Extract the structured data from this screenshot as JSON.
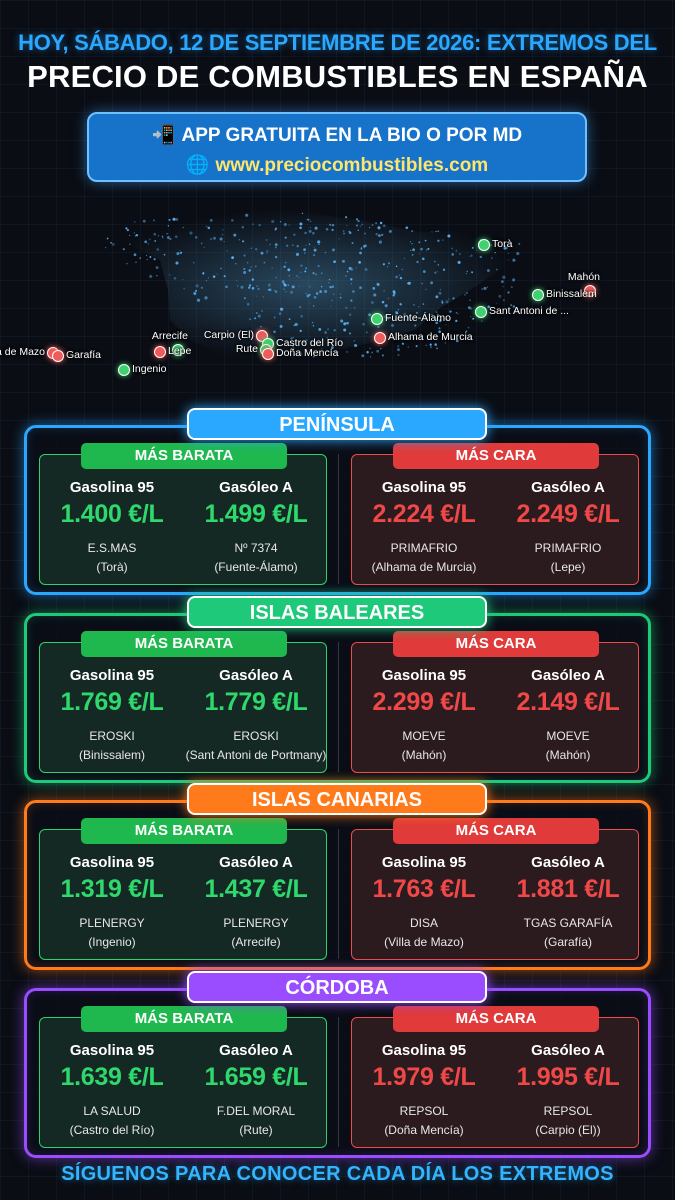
{
  "header": {
    "line1": "HOY, SÁBADO, 12 DE SEPTIEMBRE DE 2026: EXTREMOS DEL",
    "line2": "PRECIO DE COMBUSTIBLES EN ESPAÑA"
  },
  "app_banner": {
    "phone_icon": "📲",
    "line1": "APP GRATUITA EN LA BIO O POR MD",
    "globe_icon": "🌐",
    "line2": "www.preciocombustibles.com"
  },
  "map": {
    "cheap_color": "#3fd16e",
    "expensive_color": "#f05a5a",
    "pins": [
      {
        "label": "Torà",
        "type": "cheap"
      },
      {
        "label": "Mahón",
        "type": "expensive"
      },
      {
        "label": "Binissalem",
        "type": "cheap"
      },
      {
        "label": "Sant Antoni de ...",
        "type": "cheap"
      },
      {
        "label": "Fuente-Álamo",
        "type": "cheap"
      },
      {
        "label": "Alhama de Murcia",
        "type": "expensive"
      },
      {
        "label": "Carpio (El)",
        "type": "expensive"
      },
      {
        "label": "Castro del Río",
        "type": "cheap"
      },
      {
        "label": "Rute",
        "type": "cheap"
      },
      {
        "label": "Doña Mencía",
        "type": "expensive"
      },
      {
        "label": "Arrecife",
        "type": "cheap"
      },
      {
        "label": "Lepe",
        "type": "expensive"
      },
      {
        "label": "Ingenio",
        "type": "cheap"
      },
      {
        "label": "a de Mazo",
        "type": "expensive"
      },
      {
        "label": "Garafía",
        "type": "expensive"
      }
    ]
  },
  "labels": {
    "cheap": "MÁS BARATA",
    "expensive": "MÁS CARA",
    "gasolina": "Gasolina 95",
    "gasoleo": "Gasóleo A"
  },
  "regions": [
    {
      "name": "PENÍNSULA",
      "color": "#2aa7ff",
      "cheap": {
        "gasolina": {
          "price": "1.400 €/L",
          "brand": "E.S.MAS",
          "place": "(Torà)"
        },
        "gasoleo": {
          "price": "1.499 €/L",
          "brand": "Nº 7374",
          "place": "(Fuente-Álamo)"
        }
      },
      "expensive": {
        "gasolina": {
          "price": "2.224 €/L",
          "brand": "PRIMAFRIO",
          "place": "(Alhama de Murcia)"
        },
        "gasoleo": {
          "price": "2.249 €/L",
          "brand": "PRIMAFRIO",
          "place": "(Lepe)"
        }
      }
    },
    {
      "name": "ISLAS BALEARES",
      "color": "#1ec97a",
      "cheap": {
        "gasolina": {
          "price": "1.769 €/L",
          "brand": "EROSKI",
          "place": "(Binissalem)"
        },
        "gasoleo": {
          "price": "1.779 €/L",
          "brand": "EROSKI",
          "place": "(Sant Antoni de Portmany)"
        }
      },
      "expensive": {
        "gasolina": {
          "price": "2.299 €/L",
          "brand": "MOEVE",
          "place": "(Mahón)"
        },
        "gasoleo": {
          "price": "2.149 €/L",
          "brand": "MOEVE",
          "place": "(Mahón)"
        }
      }
    },
    {
      "name": "ISLAS CANARIAS",
      "color": "#ff7a1a",
      "cheap": {
        "gasolina": {
          "price": "1.319 €/L",
          "brand": "PLENERGY",
          "place": "(Ingenio)"
        },
        "gasoleo": {
          "price": "1.437 €/L",
          "brand": "PLENERGY",
          "place": "(Arrecife)"
        }
      },
      "expensive": {
        "gasolina": {
          "price": "1.763 €/L",
          "brand": "DISA",
          "place": "(Villa de Mazo)"
        },
        "gasoleo": {
          "price": "1.881 €/L",
          "brand": "TGAS GARAFÍA",
          "place": "(Garafía)"
        }
      }
    },
    {
      "name": "CÓRDOBA",
      "color": "#9a4dff",
      "cheap": {
        "gasolina": {
          "price": "1.639 €/L",
          "brand": "LA SALUD",
          "place": "(Castro del Río)"
        },
        "gasoleo": {
          "price": "1.659 €/L",
          "brand": "F.DEL MORAL",
          "place": "(Rute)"
        }
      },
      "expensive": {
        "gasolina": {
          "price": "1.979 €/L",
          "brand": "REPSOL",
          "place": "(Doña Mencía)"
        },
        "gasoleo": {
          "price": "1.995 €/L",
          "brand": "REPSOL",
          "place": "(Carpio (El))"
        }
      }
    }
  ],
  "footer": "SÍGUENOS PARA CONOCER CADA DÍA LOS EXTREMOS"
}
